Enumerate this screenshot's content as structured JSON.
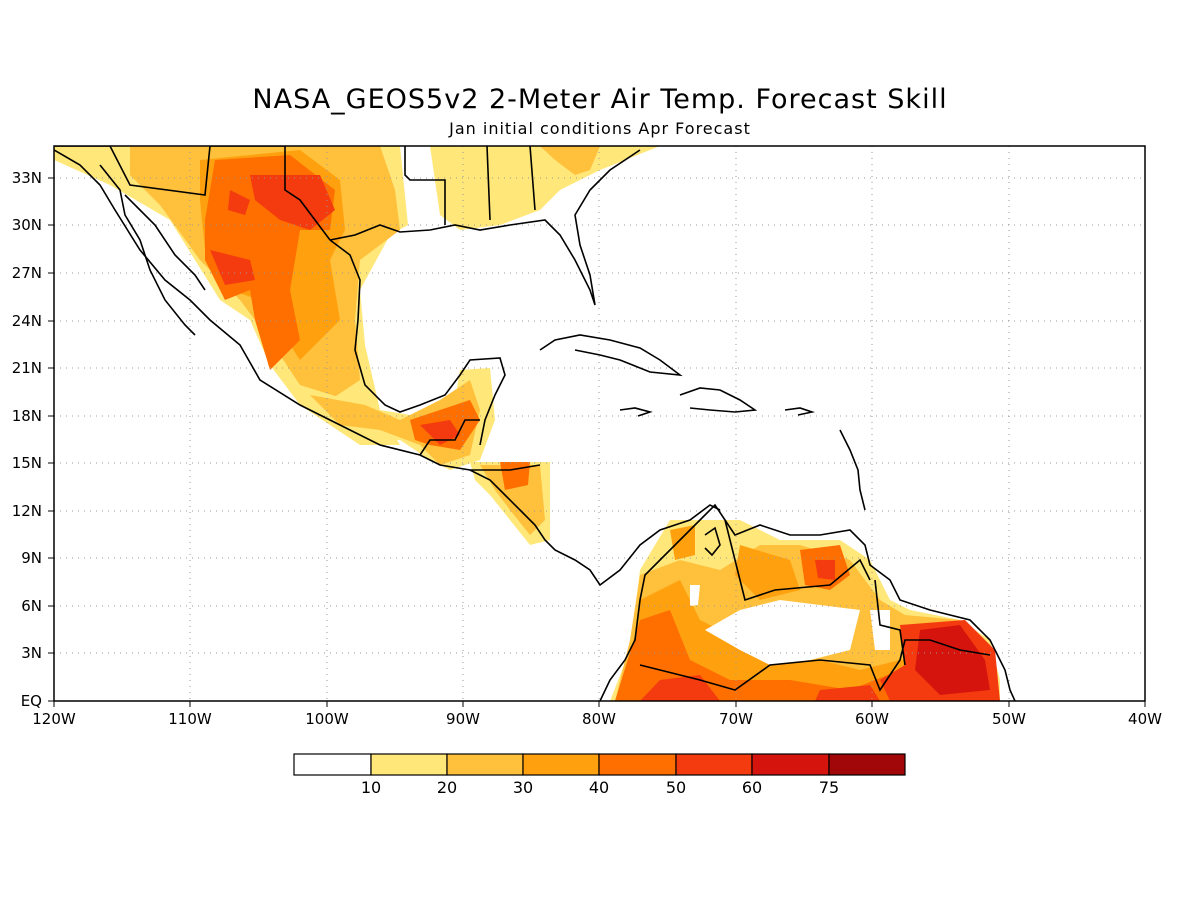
{
  "title": "NASA_GEOS5v2 2-Meter Air Temp. Forecast Skill",
  "subtitle": "Jan initial conditions  Apr Forecast",
  "lat_labels": [
    "33N",
    "30N",
    "27N",
    "24N",
    "21N",
    "18N",
    "15N",
    "12N",
    "9N",
    "6N",
    "3N",
    "EQ"
  ],
  "lon_labels": [
    "120W",
    "110W",
    "100W",
    "90W",
    "80W",
    "70W",
    "60W",
    "50W",
    "40W"
  ],
  "colorbar": {
    "labels": [
      "10",
      "20",
      "30",
      "40",
      "50",
      "60",
      "75"
    ],
    "colors": [
      "#ffffff",
      "#ffe77a",
      "#ffc03c",
      "#ffa10f",
      "#ff6f00",
      "#f43b0f",
      "#d6140e",
      "#a10608"
    ]
  },
  "map": {
    "region": "Central America, Mexico and northern South America",
    "lon_range": [
      -120,
      -40
    ],
    "lat_range": [
      0,
      35
    ],
    "grid": "dotted"
  }
}
